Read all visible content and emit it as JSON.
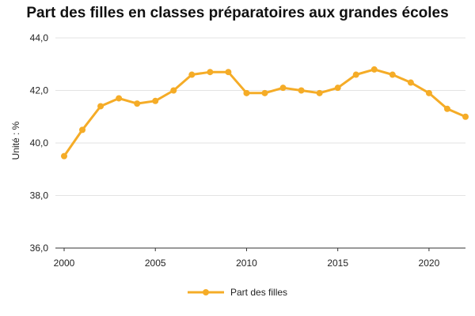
{
  "chart_data": {
    "type": "line",
    "title": "Part des filles en classes préparatoires aux grandes écoles",
    "ylabel": "Unité : %",
    "xlabel": "",
    "x": [
      2000,
      2001,
      2002,
      2003,
      2004,
      2005,
      2006,
      2007,
      2008,
      2009,
      2010,
      2011,
      2012,
      2013,
      2014,
      2015,
      2016,
      2017,
      2018,
      2019,
      2020,
      2021,
      2022
    ],
    "series": [
      {
        "name": "Part des filles",
        "color": "#f5ac27",
        "values": [
          39.5,
          40.5,
          41.4,
          41.7,
          41.5,
          41.6,
          42.0,
          42.6,
          42.7,
          42.7,
          41.9,
          41.9,
          42.1,
          42.0,
          41.9,
          42.1,
          42.6,
          42.8,
          42.6,
          42.3,
          41.9,
          41.3,
          41.0
        ]
      }
    ],
    "xlim": [
      2000,
      2022
    ],
    "ylim": [
      36,
      44
    ],
    "xticks": [
      2000,
      2005,
      2010,
      2015,
      2020
    ],
    "xtick_labels": [
      "2000",
      "2005",
      "2010",
      "2015",
      "2020"
    ],
    "yticks": [
      36,
      38,
      40,
      42,
      44
    ],
    "ytick_labels": [
      "36,0",
      "38,0",
      "40,0",
      "42,0",
      "44,0"
    ],
    "grid": "horizontal",
    "legend": "bottom-center"
  }
}
